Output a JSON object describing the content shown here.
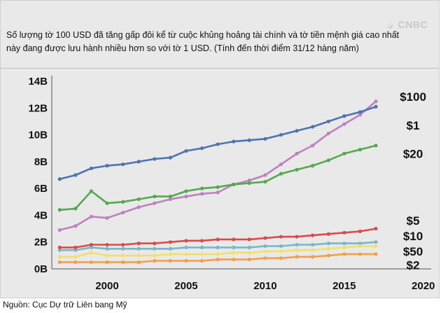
{
  "brand": "CNBC",
  "chart_data": {
    "type": "line",
    "title": "Số lượng tờ 100 USD đã tăng gấp đôi kể từ cuộc khủng hoảng tài chính và tờ tiền mệnh giá cao nhất này đang được lưu hành nhiều hơn so với tờ 1 USD. (Tính đến thời điểm 31/12 hàng năm)",
    "source": "Nguồn: Cục Dự trữ Liên bang Mỹ",
    "xlabel": "",
    "ylabel": "",
    "xlim": [
      1996.5,
      2020.5
    ],
    "ylim": [
      0,
      14
    ],
    "yticks": [
      "0B",
      "2B",
      "4B",
      "6B",
      "8B",
      "10B",
      "12B",
      "14B"
    ],
    "ytick_values": [
      0,
      2,
      4,
      6,
      8,
      10,
      12,
      14
    ],
    "xticks": [
      "2000",
      "2005",
      "2010",
      "2015",
      "2020"
    ],
    "xtick_values": [
      2000,
      2005,
      2010,
      2015,
      2020
    ],
    "x": [
      1997,
      1998,
      1999,
      2000,
      2001,
      2002,
      2003,
      2004,
      2005,
      2006,
      2007,
      2008,
      2009,
      2010,
      2011,
      2012,
      2013,
      2014,
      2015,
      2016,
      2017
    ],
    "series": [
      {
        "name": "$100",
        "color": "#bf80bf",
        "label": "$100",
        "values": [
          2.9,
          3.2,
          3.9,
          3.8,
          4.2,
          4.6,
          4.9,
          5.2,
          5.4,
          5.6,
          5.7,
          6.3,
          6.6,
          7.0,
          7.8,
          8.6,
          9.2,
          10.1,
          10.8,
          11.5,
          12.5
        ]
      },
      {
        "name": "$1",
        "color": "#4f72b0",
        "label": "$1",
        "values": [
          6.7,
          7.0,
          7.5,
          7.7,
          7.8,
          8.0,
          8.2,
          8.3,
          8.8,
          9.0,
          9.3,
          9.5,
          9.6,
          9.7,
          10.0,
          10.3,
          10.6,
          11.0,
          11.4,
          11.7,
          12.1
        ]
      },
      {
        "name": "$20",
        "color": "#55a84f",
        "label": "$20",
        "values": [
          4.4,
          4.5,
          5.8,
          4.9,
          5.0,
          5.2,
          5.4,
          5.4,
          5.8,
          6.0,
          6.1,
          6.3,
          6.4,
          6.5,
          7.1,
          7.4,
          7.7,
          8.1,
          8.6,
          8.9,
          9.2
        ]
      },
      {
        "name": "$5",
        "color": "#77b8c8",
        "label": "$5",
        "values": [
          1.4,
          1.4,
          1.6,
          1.5,
          1.5,
          1.5,
          1.5,
          1.5,
          1.6,
          1.6,
          1.6,
          1.6,
          1.6,
          1.7,
          1.7,
          1.8,
          1.8,
          1.9,
          1.9,
          1.9,
          2.0
        ]
      },
      {
        "name": "$10",
        "color": "#d94b4b",
        "label": "$10",
        "values": [
          1.6,
          1.6,
          1.8,
          1.8,
          1.8,
          1.9,
          1.9,
          2.0,
          2.1,
          2.1,
          2.2,
          2.2,
          2.2,
          2.3,
          2.4,
          2.4,
          2.5,
          2.6,
          2.7,
          2.8,
          3.0
        ]
      },
      {
        "name": "$50",
        "color": "#f2e06a",
        "label": "$50",
        "values": [
          0.9,
          0.9,
          1.2,
          1.0,
          1.0,
          1.0,
          1.0,
          1.1,
          1.1,
          1.1,
          1.1,
          1.2,
          1.2,
          1.3,
          1.3,
          1.4,
          1.4,
          1.5,
          1.6,
          1.7,
          1.7
        ]
      },
      {
        "name": "$2",
        "color": "#f0a04a",
        "label": "$2",
        "values": [
          0.5,
          0.5,
          0.5,
          0.5,
          0.5,
          0.5,
          0.6,
          0.6,
          0.6,
          0.6,
          0.7,
          0.7,
          0.7,
          0.8,
          0.8,
          0.9,
          0.9,
          1.0,
          1.1,
          1.1,
          1.1
        ]
      }
    ],
    "grid": false,
    "legend": "inline-right"
  }
}
